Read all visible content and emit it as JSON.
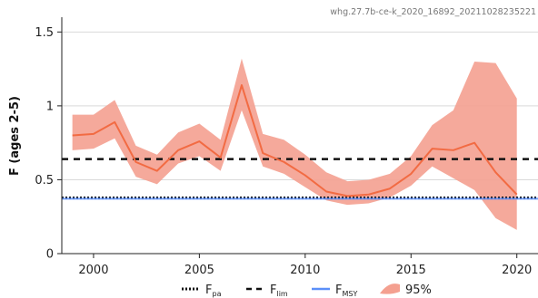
{
  "watermark": "whg.27.7b-ce-k_2020_16892_20211028235221",
  "chart_data": {
    "type": "line",
    "title": "",
    "xlabel": "",
    "ylabel": "F (ages 2-5)",
    "xlim": [
      1998.5,
      2021
    ],
    "ylim": [
      0,
      1.6
    ],
    "x_ticks": [
      2000,
      2005,
      2010,
      2015,
      2020
    ],
    "y_ticks": [
      0,
      0.5,
      1,
      1.5
    ],
    "x_tick_labels": [
      "2000",
      "2005",
      "2010",
      "2015",
      "2020"
    ],
    "y_tick_labels": [
      "0",
      "0.5",
      "1",
      "1.5"
    ],
    "grid": "y",
    "legend_position": "bottom",
    "series": [
      {
        "name": "F",
        "color": "#f26b43",
        "x": [
          1999,
          2000,
          2001,
          2002,
          2003,
          2004,
          2005,
          2006,
          2007,
          2008,
          2009,
          2010,
          2011,
          2012,
          2013,
          2014,
          2015,
          2016,
          2017,
          2018,
          2019,
          2020
        ],
        "values": [
          0.8,
          0.81,
          0.89,
          0.62,
          0.56,
          0.7,
          0.76,
          0.65,
          1.14,
          0.68,
          0.62,
          0.53,
          0.42,
          0.39,
          0.4,
          0.44,
          0.54,
          0.71,
          0.7,
          0.75,
          0.55,
          0.4
        ]
      }
    ],
    "band": {
      "name": "95%",
      "color": "#f4a090",
      "lower": [
        0.7,
        0.71,
        0.78,
        0.52,
        0.47,
        0.61,
        0.66,
        0.56,
        0.97,
        0.59,
        0.54,
        0.45,
        0.36,
        0.33,
        0.34,
        0.38,
        0.46,
        0.59,
        0.51,
        0.43,
        0.24,
        0.16
      ],
      "upper": [
        0.94,
        0.94,
        1.04,
        0.73,
        0.67,
        0.82,
        0.88,
        0.77,
        1.32,
        0.81,
        0.77,
        0.67,
        0.55,
        0.49,
        0.5,
        0.54,
        0.66,
        0.87,
        0.97,
        1.3,
        1.29,
        1.05
      ]
    },
    "reference_lines": [
      {
        "name": "Fpa",
        "label_main": "F",
        "label_sub": "pa",
        "value": 0.377,
        "style": "dotted",
        "color": "#111111"
      },
      {
        "name": "Flim",
        "label_main": "F",
        "label_sub": "lim",
        "value": 0.64,
        "style": "dashed",
        "color": "#111111"
      },
      {
        "name": "FMSY",
        "label_main": "F",
        "label_sub": "MSY",
        "value": 0.372,
        "style": "solid",
        "color": "#5b8ff9"
      }
    ]
  }
}
